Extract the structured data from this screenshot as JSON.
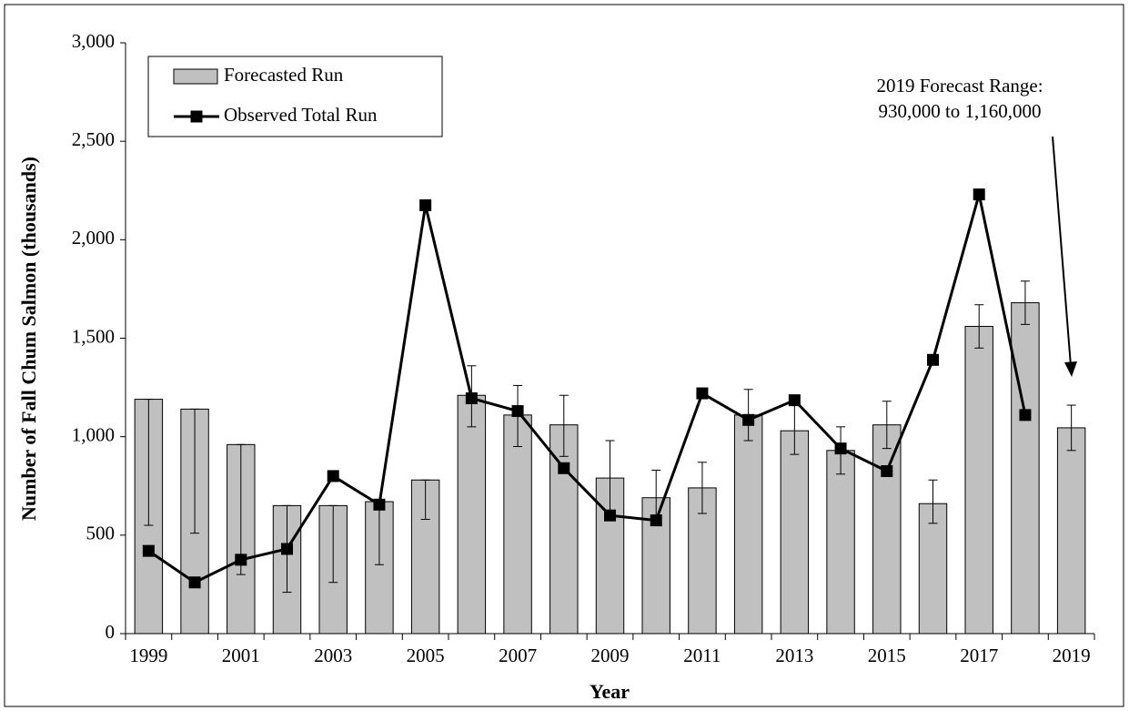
{
  "chart_data": {
    "type": "bar",
    "x_label": "Year",
    "y_label": "Number of Fall Chum Salmon (thousands)",
    "categories": [
      "1999",
      null,
      "2001",
      null,
      "2003",
      null,
      "2005",
      null,
      "2007",
      null,
      "2009",
      null,
      "2011",
      null,
      "2013",
      null,
      "2015",
      null,
      "2017",
      null,
      "2019"
    ],
    "series": [
      {
        "name": "Forecasted Run",
        "type": "bar",
        "color": "#c0c0c0",
        "values": [
          1190,
          1140,
          960,
          650,
          650,
          670,
          780,
          1210,
          1110,
          1060,
          790,
          690,
          740,
          1110,
          1030,
          930,
          1060,
          660,
          1560,
          1680,
          1045
        ],
        "ranges": [
          [
            550,
            1190
          ],
          [
            510,
            1140
          ],
          [
            300,
            960
          ],
          [
            210,
            650
          ],
          [
            260,
            650
          ],
          [
            350,
            670
          ],
          [
            580,
            780
          ],
          [
            1050,
            1360
          ],
          [
            950,
            1260
          ],
          [
            900,
            1210
          ],
          [
            600,
            980
          ],
          [
            570,
            830
          ],
          [
            610,
            870
          ],
          [
            980,
            1240
          ],
          [
            910,
            1160
          ],
          [
            810,
            1050
          ],
          [
            940,
            1180
          ],
          [
            560,
            780
          ],
          [
            1450,
            1670
          ],
          [
            1570,
            1790
          ],
          [
            930,
            1160
          ]
        ]
      },
      {
        "name": "Observed Total Run",
        "type": "line",
        "color": "#000000",
        "values": [
          420,
          260,
          375,
          430,
          800,
          655,
          2175,
          1195,
          1130,
          840,
          600,
          575,
          1220,
          1085,
          1185,
          940,
          825,
          1390,
          2230,
          1110,
          null
        ]
      }
    ],
    "ylim": [
      0,
      3000
    ],
    "yticks": [
      0,
      500,
      {
        "value": 1000,
        "label": "1,000"
      },
      {
        "value": 1500,
        "label": "1,500"
      },
      {
        "value": 2000,
        "label": "2,000"
      },
      {
        "value": 2500,
        "label": "2,500"
      },
      {
        "value": 3000,
        "label": "3,000"
      }
    ],
    "legend": "top-left",
    "annotation": {
      "text": [
        "2019 Forecast Range:",
        "930,000 to 1,160,000"
      ]
    }
  }
}
